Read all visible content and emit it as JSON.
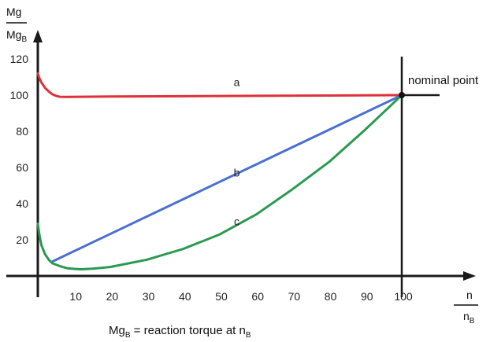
{
  "chart_data": {
    "type": "line",
    "x_range": [
      0,
      100
    ],
    "y_range": [
      0,
      120
    ],
    "x_ticks": [
      10,
      20,
      30,
      40,
      50,
      60,
      70,
      80,
      90,
      100
    ],
    "y_ticks": [
      20,
      40,
      60,
      80,
      100,
      120
    ],
    "ylabel_top": "Mg",
    "ylabel_bottom": "Mg",
    "ylabel_sub": "B",
    "xlabel_top": "n",
    "xlabel_bottom": "n",
    "xlabel_sub": "B",
    "grid": false,
    "annotation_point": {
      "label": "nominal point",
      "x": 100,
      "y": 100
    },
    "footnote": {
      "text": "Mg",
      "sub": "B",
      "rest": " = reaction torque at n",
      "sub2": "B"
    },
    "series": [
      {
        "name": "a",
        "color": "#e0303a",
        "x": [
          0,
          0.5,
          1,
          2,
          3,
          4,
          5,
          6,
          8,
          20,
          40,
          60,
          80,
          100
        ],
        "y": [
          112,
          109,
          107,
          104,
          102,
          100.5,
          99.6,
          99.1,
          99,
          99.2,
          99.4,
          99.6,
          99.8,
          100
        ],
        "label_at": [
          46,
          105
        ]
      },
      {
        "name": "b",
        "color": "#4a6fd0",
        "x": [
          4,
          100
        ],
        "y": [
          8,
          100
        ],
        "label_at": [
          46,
          55
        ]
      },
      {
        "name": "c",
        "color": "#2a9a50",
        "x": [
          0,
          0.5,
          1,
          2,
          3,
          4,
          6,
          8,
          10,
          12,
          15,
          20,
          30,
          40,
          50,
          60,
          70,
          80,
          90,
          100
        ],
        "y": [
          29,
          22,
          17,
          12,
          9,
          7,
          5.5,
          4.3,
          3.9,
          3.7,
          4,
          5,
          9,
          15,
          23,
          34,
          48,
          63,
          81,
          100
        ],
        "label_at": [
          46,
          28
        ]
      }
    ]
  }
}
